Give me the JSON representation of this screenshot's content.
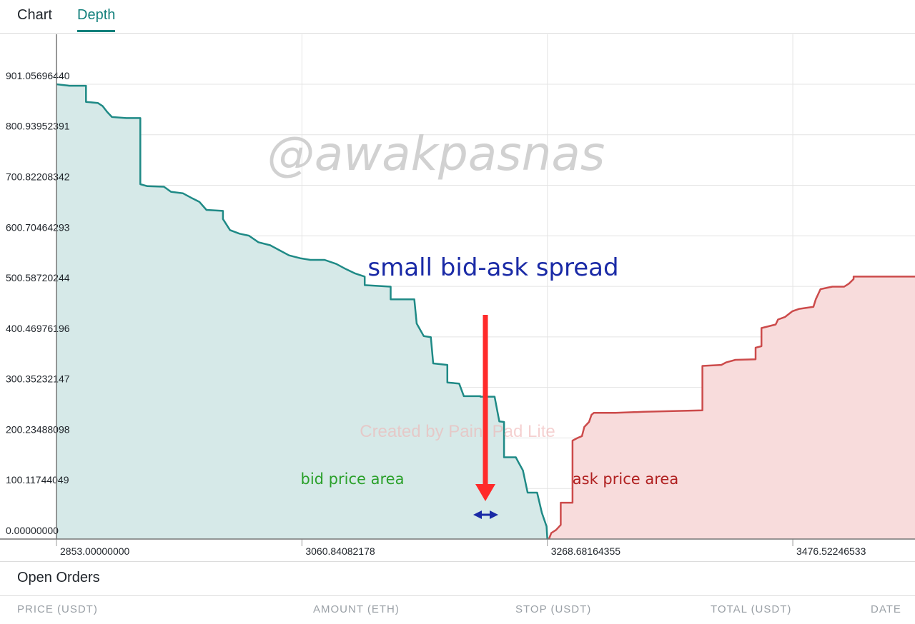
{
  "tabs": [
    {
      "label": "Chart",
      "active": false
    },
    {
      "label": "Depth",
      "active": true
    }
  ],
  "colors": {
    "accent": "#12807c",
    "bid_line": "#1f8a86",
    "bid_fill": "#d6e9e8",
    "ask_line": "#cc4b4b",
    "ask_fill": "#f8dcdc",
    "annotation_blue": "#1a2aa6",
    "annotation_arrow": "#ff2a2a",
    "bid_label": "#2aa02a",
    "ask_label": "#b02020"
  },
  "chart_data": {
    "type": "area",
    "xlim": [
      2853.0,
      3580.0
    ],
    "ylim": [
      0.0,
      1000.0
    ],
    "x_ticks": [
      "2853.00000000",
      "3060.84082178",
      "3268.68164355",
      "3476.52246533"
    ],
    "y_ticks": [
      "0.00000000",
      "100.11744049",
      "200.23488098",
      "300.35232147",
      "400.46976196",
      "500.58720244",
      "600.70464293",
      "700.82208342",
      "800.93952391",
      "901.05696440"
    ],
    "grid": true,
    "series": [
      {
        "type": "bid",
        "step_points": [
          [
            2853.0,
            901.06
          ],
          [
            2864.0,
            898.0
          ],
          [
            2878.0,
            898.0
          ],
          [
            2878.0,
            866.0
          ],
          [
            2888.0,
            864.0
          ],
          [
            2892.0,
            858.0
          ],
          [
            2896.0,
            846.0
          ],
          [
            2900.0,
            836.0
          ],
          [
            2912.0,
            834.0
          ],
          [
            2924.0,
            834.0
          ],
          [
            2924.0,
            703.0
          ],
          [
            2930.0,
            699.0
          ],
          [
            2944.0,
            698.0
          ],
          [
            2950.0,
            688.0
          ],
          [
            2960.0,
            685.0
          ],
          [
            2968.0,
            675.0
          ],
          [
            2974.0,
            668.0
          ],
          [
            2980.0,
            652.0
          ],
          [
            2994.0,
            650.0
          ],
          [
            2994.0,
            634.0
          ],
          [
            3000.0,
            612.0
          ],
          [
            3008.0,
            605.0
          ],
          [
            3016.0,
            601.0
          ],
          [
            3024.0,
            588.0
          ],
          [
            3034.0,
            582.0
          ],
          [
            3042.0,
            572.0
          ],
          [
            3050.0,
            562.0
          ],
          [
            3060.0,
            556.0
          ],
          [
            3068.0,
            553.0
          ],
          [
            3080.0,
            553.0
          ],
          [
            3090.0,
            545.0
          ],
          [
            3098.0,
            535.0
          ],
          [
            3106.0,
            526.0
          ],
          [
            3114.0,
            520.0
          ],
          [
            3114.0,
            503.0
          ],
          [
            3136.0,
            500.0
          ],
          [
            3136.0,
            475.0
          ],
          [
            3156.0,
            475.0
          ],
          [
            3158.0,
            427.0
          ],
          [
            3164.0,
            402.0
          ],
          [
            3170.0,
            400.0
          ],
          [
            3172.0,
            348.0
          ],
          [
            3184.0,
            345.0
          ],
          [
            3184.0,
            310.0
          ],
          [
            3194.0,
            308.0
          ],
          [
            3198.0,
            283.0
          ],
          [
            3212.0,
            283.0
          ],
          [
            3212.0,
            282.0
          ],
          [
            3224.0,
            282.0
          ],
          [
            3228.0,
            233.0
          ],
          [
            3232.0,
            232.0
          ],
          [
            3232.0,
            162.0
          ],
          [
            3242.0,
            162.0
          ],
          [
            3244.0,
            153.0
          ],
          [
            3248.0,
            136.0
          ],
          [
            3252.0,
            92.0
          ],
          [
            3260.0,
            92.0
          ],
          [
            3264.0,
            52.0
          ],
          [
            3268.0,
            25.0
          ],
          [
            3268.68,
            0.0
          ]
        ]
      },
      {
        "type": "ask",
        "step_points": [
          [
            3270.0,
            0.0
          ],
          [
            3272.0,
            12.0
          ],
          [
            3276.0,
            18.0
          ],
          [
            3280.0,
            28.0
          ],
          [
            3280.0,
            72.0
          ],
          [
            3290.0,
            72.0
          ],
          [
            3290.0,
            195.0
          ],
          [
            3294.0,
            200.0
          ],
          [
            3298.0,
            204.0
          ],
          [
            3300.0,
            222.0
          ],
          [
            3304.0,
            232.0
          ],
          [
            3306.0,
            246.0
          ],
          [
            3308.0,
            250.0
          ],
          [
            3326.0,
            250.0
          ],
          [
            3350.0,
            252.0
          ],
          [
            3400.0,
            255.0
          ],
          [
            3400.0,
            343.0
          ],
          [
            3416.0,
            345.0
          ],
          [
            3420.0,
            350.0
          ],
          [
            3428.0,
            355.0
          ],
          [
            3445.0,
            356.0
          ],
          [
            3445.0,
            379.0
          ],
          [
            3450.0,
            382.0
          ],
          [
            3450.0,
            418.0
          ],
          [
            3462.0,
            425.0
          ],
          [
            3464.0,
            435.0
          ],
          [
            3470.0,
            440.0
          ],
          [
            3476.0,
            451.0
          ],
          [
            3482.0,
            456.0
          ],
          [
            3494.0,
            460.0
          ],
          [
            3496.0,
            475.0
          ],
          [
            3500.0,
            495.0
          ],
          [
            3510.0,
            500.0
          ],
          [
            3520.0,
            500.0
          ],
          [
            3524.0,
            506.0
          ],
          [
            3528.0,
            515.0
          ],
          [
            3528.0,
            520.0
          ],
          [
            3580.0,
            520.0
          ]
        ]
      }
    ],
    "annotations": [
      {
        "text": "small bid-ask spread"
      },
      {
        "text": "bid price area"
      },
      {
        "text": "ask price area"
      }
    ],
    "watermarks": [
      "@awakpasnas",
      "Created by Paint Pad Lite"
    ]
  },
  "open_orders": {
    "title": "Open Orders",
    "columns": [
      "PRICE (USDT)",
      "AMOUNT (ETH)",
      "STOP (USDT)",
      "TOTAL (USDT)",
      "DATE"
    ]
  }
}
